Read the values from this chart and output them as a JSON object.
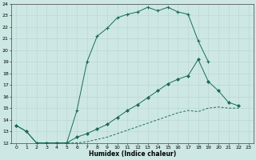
{
  "xlabel": "Humidex (Indice chaleur)",
  "bg_color": "#cde8e4",
  "line_color": "#1a6b5a",
  "ylim": [
    12,
    24
  ],
  "xlim": [
    -0.5,
    23.5
  ],
  "yticks": [
    12,
    13,
    14,
    15,
    16,
    17,
    18,
    19,
    20,
    21,
    22,
    23,
    24
  ],
  "xticks": [
    0,
    1,
    2,
    3,
    4,
    5,
    6,
    7,
    8,
    9,
    10,
    11,
    12,
    13,
    14,
    15,
    16,
    17,
    18,
    19,
    20,
    21,
    22,
    23
  ],
  "line1_x": [
    0,
    1,
    2,
    3,
    4,
    5,
    6,
    7,
    8,
    9,
    10,
    11,
    12,
    13,
    14,
    15,
    16,
    17,
    18,
    19
  ],
  "line1_y": [
    13.5,
    13.0,
    12.0,
    12.0,
    12.0,
    12.0,
    14.8,
    19.0,
    21.2,
    21.9,
    22.8,
    23.1,
    23.3,
    23.7,
    23.4,
    23.7,
    23.3,
    23.1,
    20.8,
    19.0
  ],
  "line2_x": [
    0,
    1,
    2,
    3,
    4,
    5,
    6,
    7,
    8,
    9,
    10,
    11,
    12,
    13,
    14,
    15,
    16,
    17,
    18,
    19,
    20,
    21,
    22
  ],
  "line2_y": [
    13.5,
    13.0,
    12.0,
    12.0,
    12.0,
    12.0,
    12.5,
    12.8,
    13.2,
    13.6,
    14.2,
    14.8,
    15.3,
    15.9,
    16.5,
    17.1,
    17.5,
    17.8,
    19.2,
    17.3,
    16.5,
    15.5,
    15.2
  ],
  "line3_x": [
    2,
    3,
    4,
    5,
    6,
    7,
    8,
    9,
    10,
    11,
    12,
    13,
    14,
    15,
    16,
    17,
    18,
    19,
    20,
    21,
    22
  ],
  "line3_y": [
    12.0,
    12.0,
    12.0,
    12.0,
    12.0,
    12.1,
    12.3,
    12.5,
    12.8,
    13.1,
    13.4,
    13.7,
    14.0,
    14.3,
    14.6,
    14.8,
    14.7,
    15.0,
    15.1,
    15.0,
    15.0
  ]
}
